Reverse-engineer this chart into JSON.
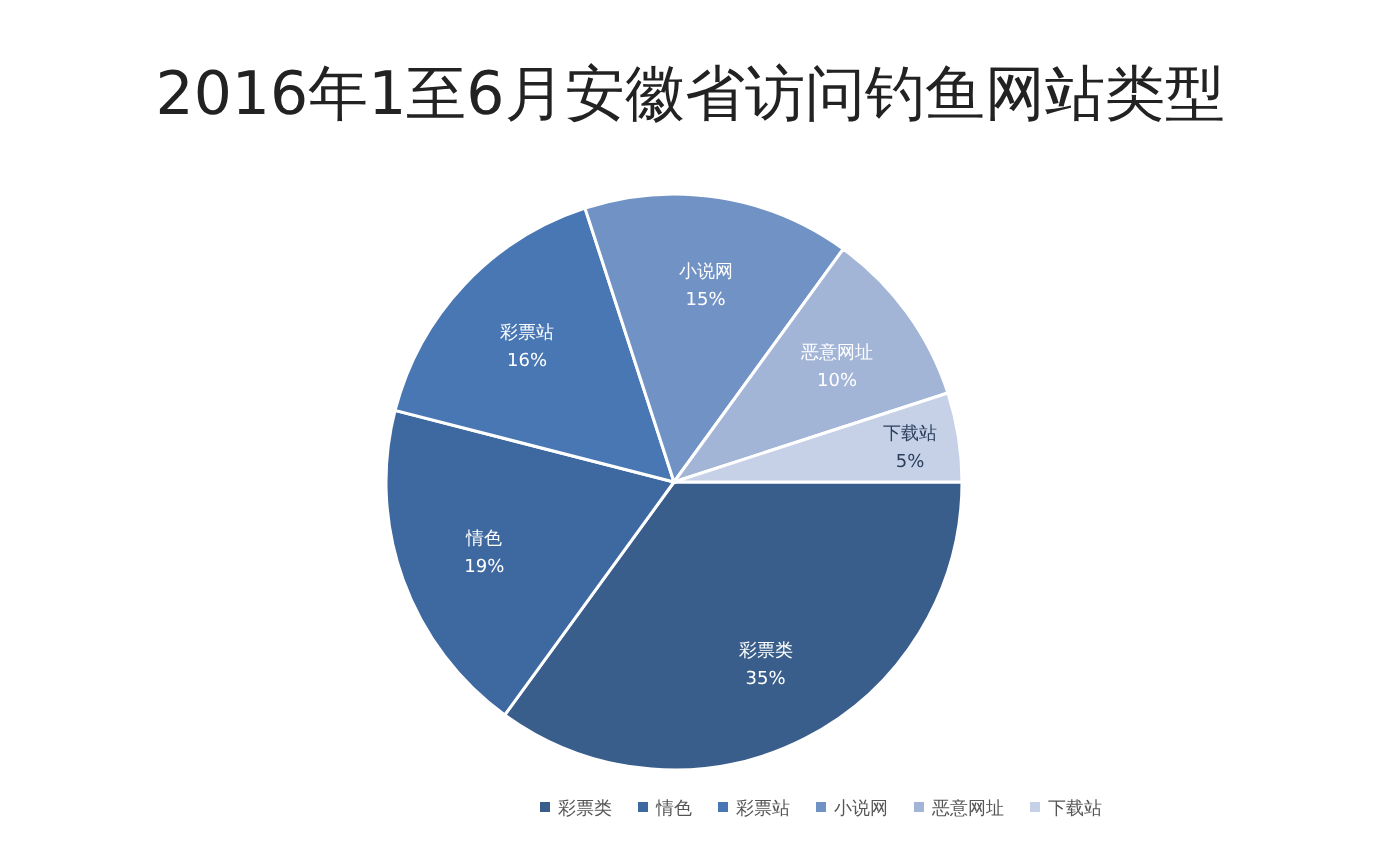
{
  "chart_data": {
    "type": "pie",
    "title": "2016年1至6月安徽省访问钓鱼网站类型",
    "categories": [
      "彩票类",
      "情色",
      "彩票站",
      "小说网",
      "恶意网址",
      "下载站"
    ],
    "values": [
      35,
      19,
      16,
      15,
      10,
      5
    ],
    "colors": [
      "#3a5e8c",
      "#3e69a0",
      "#4877b3",
      "#7192c4",
      "#a3b5d7",
      "#c6d1e7"
    ],
    "value_labels": [
      "35%",
      "19%",
      "16%",
      "15%",
      "10%",
      "5%"
    ],
    "legend": "bottom"
  }
}
